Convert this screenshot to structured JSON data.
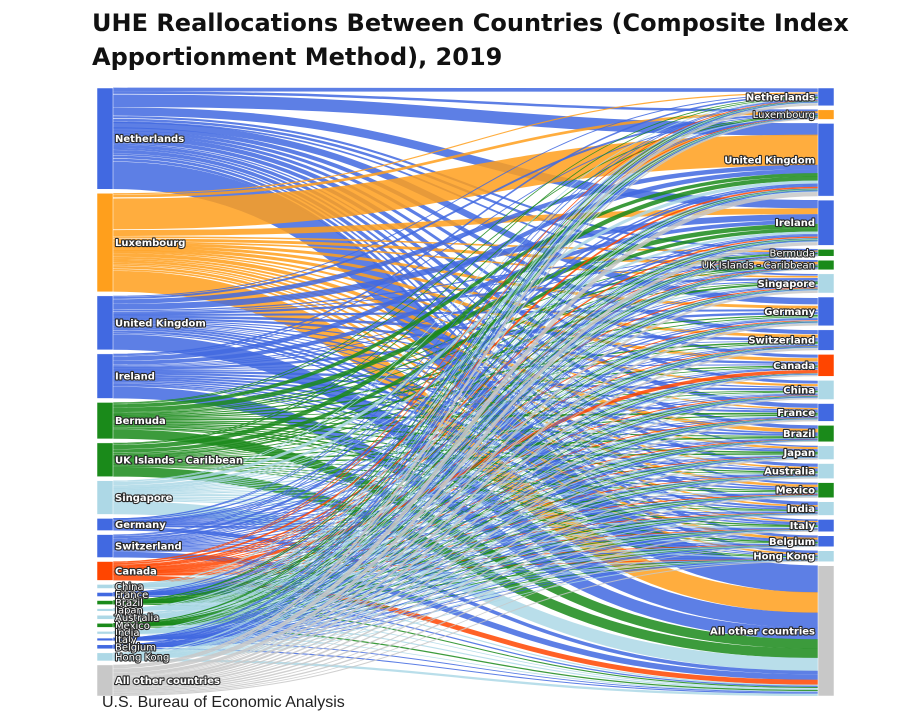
{
  "chart_data": {
    "type": "sankey",
    "title": "UHE Reallocations Between Countries (Composite Index Apportionment Method), 2019",
    "source": "U.S. Bureau of Economic Analysis",
    "colors": {
      "blue": "#4169e1",
      "orange": "#ff9f1c",
      "green": "#1a8a1a",
      "lightblue": "#add8e6",
      "red": "#ff4500",
      "gray": "#c8c8c8"
    },
    "source_nodes": [
      {
        "name": "Netherlands",
        "color": "blue"
      },
      {
        "name": "Luxembourg",
        "color": "orange"
      },
      {
        "name": "United Kingdom",
        "color": "blue"
      },
      {
        "name": "Ireland",
        "color": "blue"
      },
      {
        "name": "Bermuda",
        "color": "green"
      },
      {
        "name": "UK Islands - Caribbean",
        "color": "green"
      },
      {
        "name": "Singapore",
        "color": "lightblue"
      },
      {
        "name": "Germany",
        "color": "blue"
      },
      {
        "name": "Switzerland",
        "color": "blue"
      },
      {
        "name": "Canada",
        "color": "red"
      },
      {
        "name": "China",
        "color": "lightblue"
      },
      {
        "name": "France",
        "color": "blue"
      },
      {
        "name": "Brazil",
        "color": "green"
      },
      {
        "name": "Japan",
        "color": "lightblue"
      },
      {
        "name": "Australia",
        "color": "lightblue"
      },
      {
        "name": "Mexico",
        "color": "green"
      },
      {
        "name": "India",
        "color": "lightblue"
      },
      {
        "name": "Italy",
        "color": "blue"
      },
      {
        "name": "Belgium",
        "color": "blue"
      },
      {
        "name": "Hong Kong",
        "color": "lightblue"
      },
      {
        "name": "All other countries",
        "color": "gray"
      }
    ],
    "target_nodes": [
      {
        "name": "Netherlands",
        "color": "blue"
      },
      {
        "name": "Luxembourg",
        "color": "orange"
      },
      {
        "name": "United Kingdom",
        "color": "blue"
      },
      {
        "name": "Ireland",
        "color": "blue"
      },
      {
        "name": "Bermuda",
        "color": "green"
      },
      {
        "name": "UK Islands - Caribbean",
        "color": "green"
      },
      {
        "name": "Singapore",
        "color": "lightblue"
      },
      {
        "name": "Germany",
        "color": "blue"
      },
      {
        "name": "Switzerland",
        "color": "blue"
      },
      {
        "name": "Canada",
        "color": "red"
      },
      {
        "name": "China",
        "color": "lightblue"
      },
      {
        "name": "France",
        "color": "blue"
      },
      {
        "name": "Brazil",
        "color": "green"
      },
      {
        "name": "Japan",
        "color": "lightblue"
      },
      {
        "name": "Australia",
        "color": "lightblue"
      },
      {
        "name": "Mexico",
        "color": "green"
      },
      {
        "name": "India",
        "color": "lightblue"
      },
      {
        "name": "Italy",
        "color": "blue"
      },
      {
        "name": "Belgium",
        "color": "blue"
      },
      {
        "name": "Hong Kong",
        "color": "lightblue"
      },
      {
        "name": "All other countries",
        "color": "gray"
      }
    ],
    "source_totals": [
      75,
      73,
      40,
      33,
      27,
      25,
      25,
      9,
      17,
      14,
      3,
      3,
      3,
      2,
      3,
      3,
      2,
      2,
      3,
      6,
      23
    ],
    "target_totals": [
      13,
      7,
      53,
      33,
      5,
      7,
      14,
      21,
      15,
      16,
      14,
      13,
      12,
      10,
      11,
      11,
      10,
      9,
      8,
      8,
      95
    ]
  }
}
